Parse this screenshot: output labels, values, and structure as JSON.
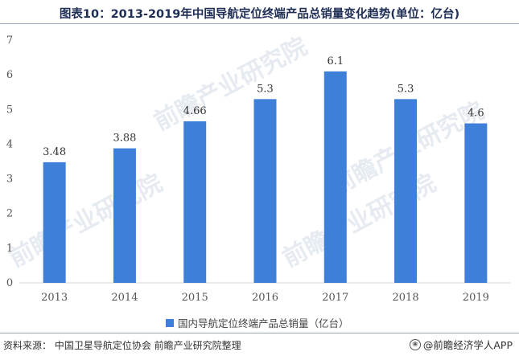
{
  "title": "图表10：2013-2019年中国导航定位终端产品总销量变化趋势(单位：亿台)",
  "chart_data": {
    "type": "bar",
    "categories": [
      "2013",
      "2014",
      "2015",
      "2016",
      "2017",
      "2018",
      "2019"
    ],
    "values": [
      3.48,
      3.88,
      4.66,
      5.3,
      6.1,
      5.3,
      4.6
    ],
    "data_labels": [
      "3.48",
      "3.88",
      "4.66",
      "5.3",
      "6.1",
      "5.3",
      "4.6"
    ],
    "series": [
      {
        "name": "国内导航定位终端产品总销量（亿台）",
        "values": [
          3.48,
          3.88,
          4.66,
          5.3,
          6.1,
          5.3,
          4.6
        ]
      }
    ],
    "ylim": [
      0,
      7
    ],
    "yticks": [
      0,
      1,
      2,
      3,
      4,
      5,
      6,
      7
    ],
    "xlabel": "",
    "ylabel": "",
    "grid": false,
    "legend_position": "bottom",
    "bar_color": "#3e7fd9"
  },
  "legend_label": "国内导航定位终端产品总销量（亿台）",
  "source": "资料来源：  中国卫星导航定位协会 前瞻产业研究院整理",
  "brand": "@前瞻经济学人APP",
  "watermark_text": "前瞻产业研究院"
}
